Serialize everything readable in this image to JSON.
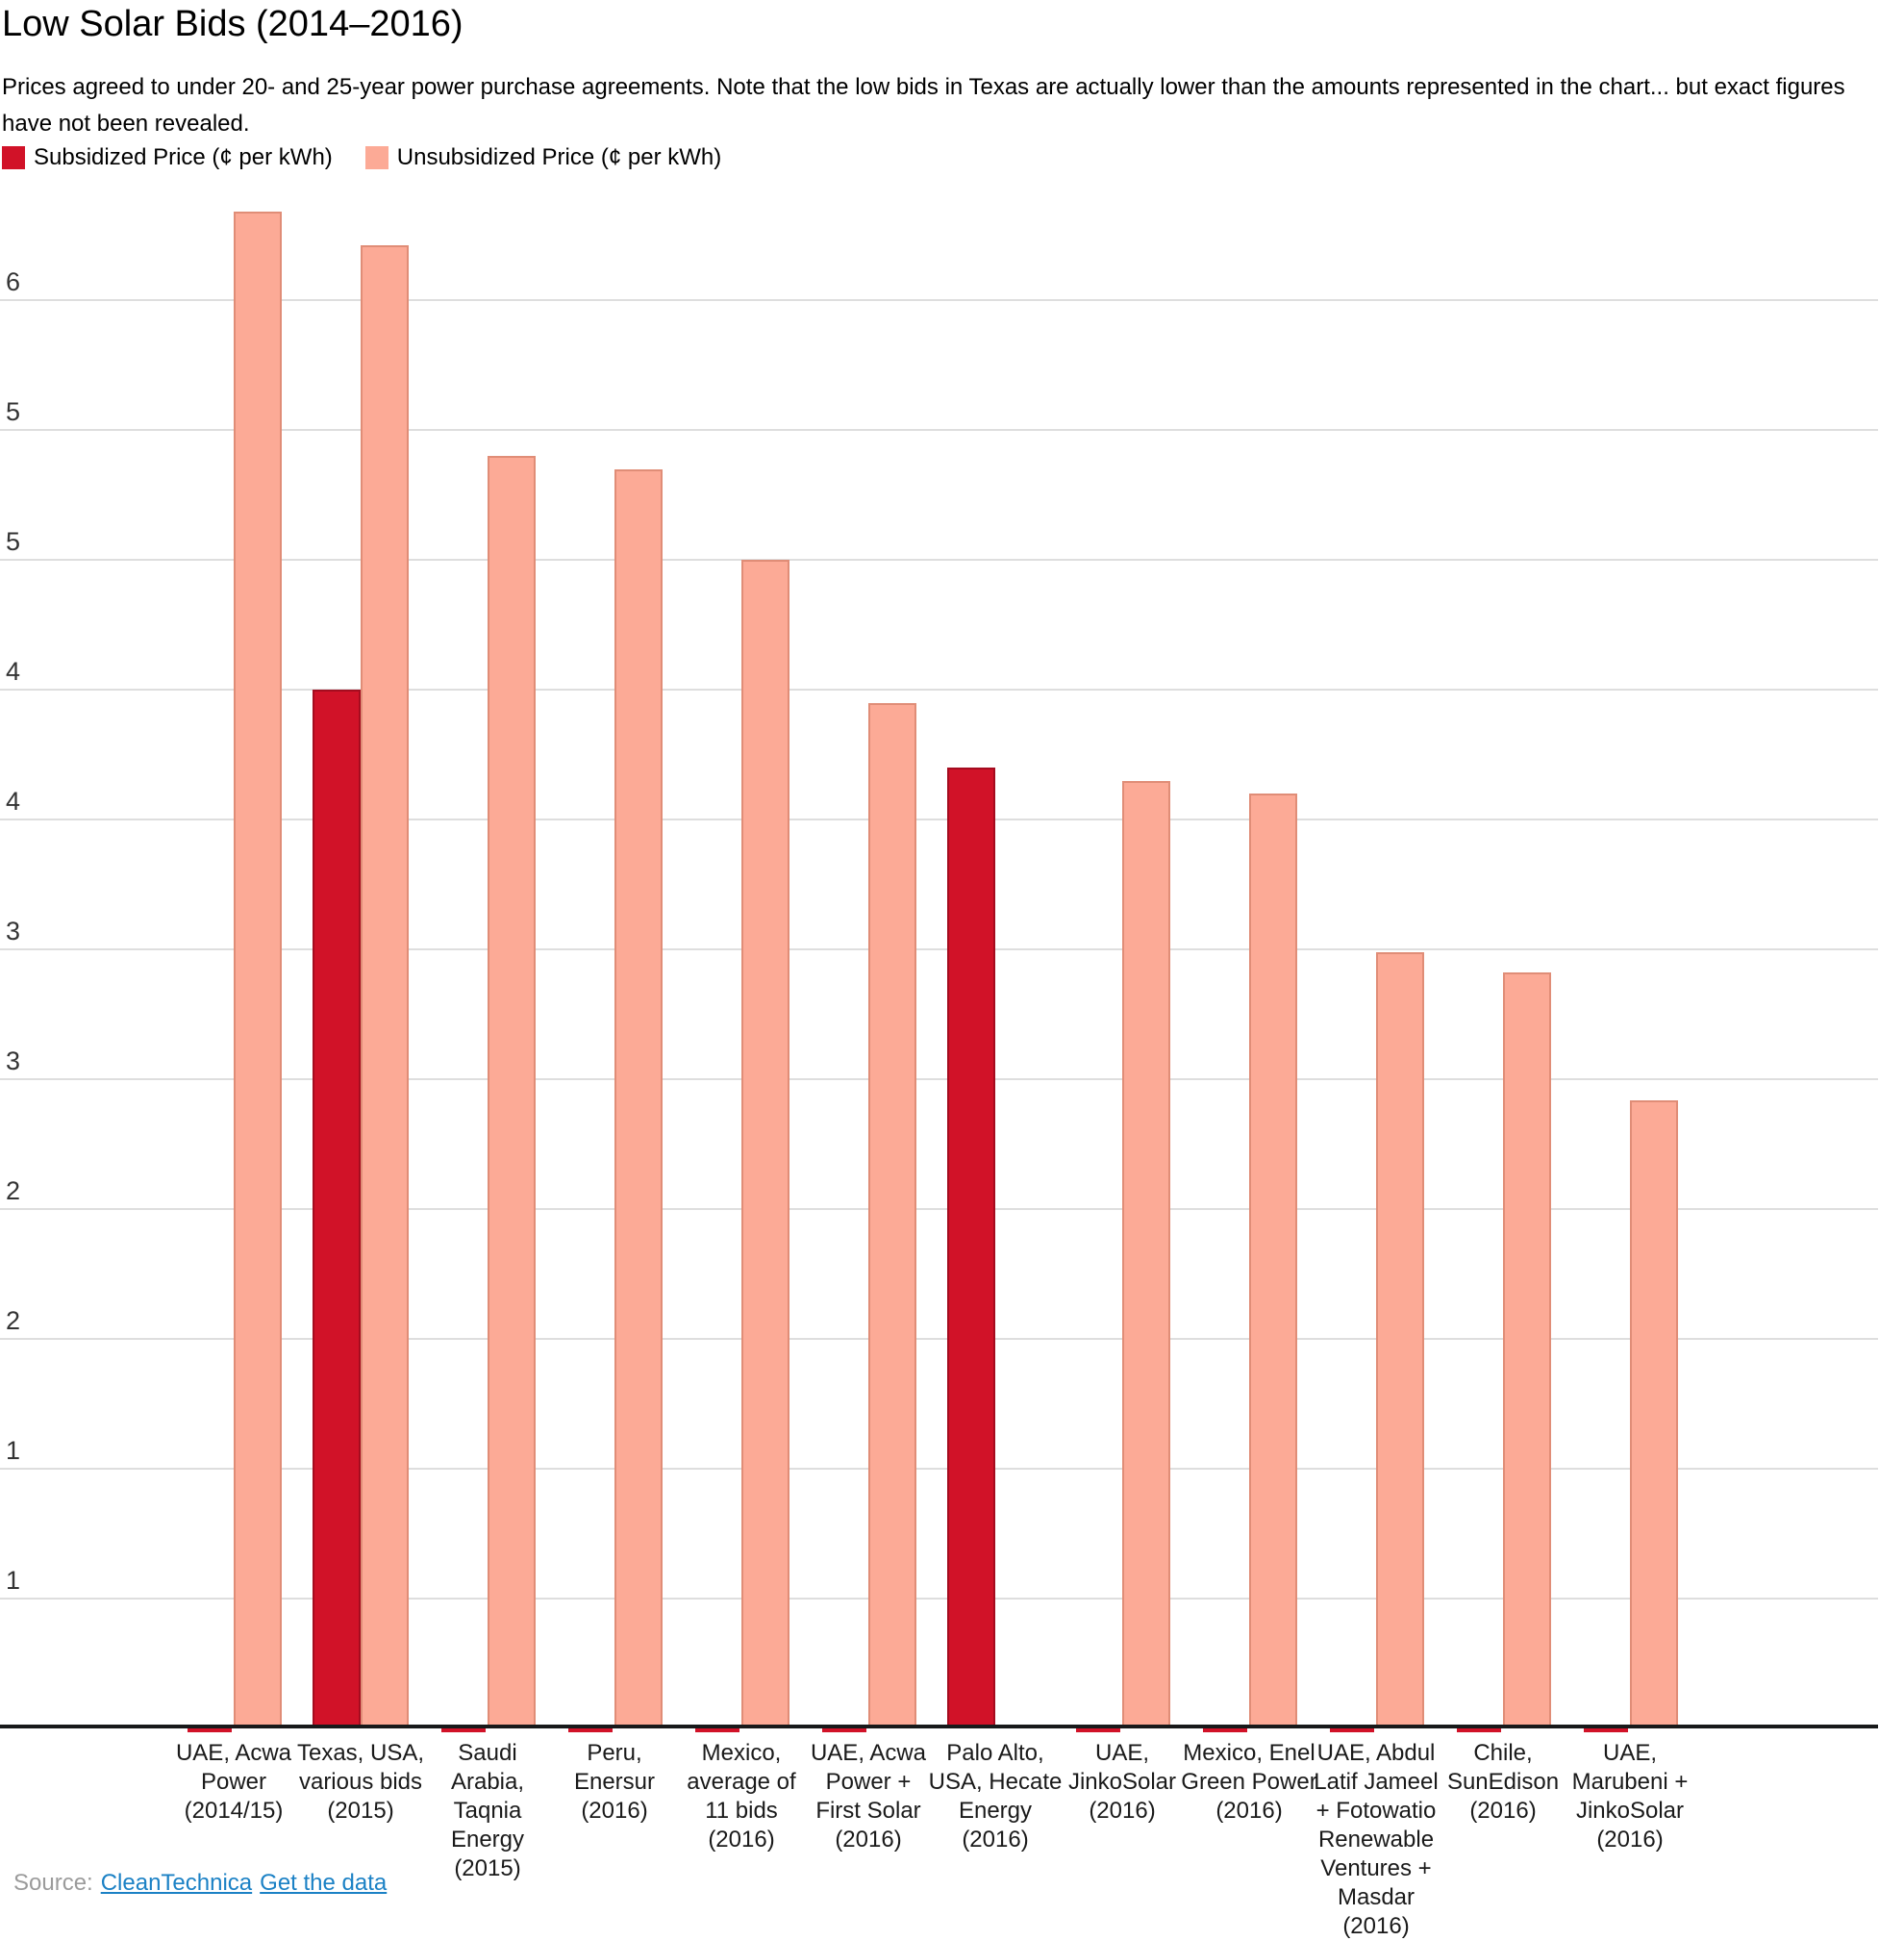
{
  "header": {
    "title": "Low Solar Bids (2014–2016)",
    "subtitle": "Prices agreed to under 20- and 25-year power purchase agreements. Note that the low bids in Texas are actually lower than the amounts represented in the chart... but exact figures have not been revealed."
  },
  "legend": {
    "items": [
      {
        "label": "Subsidized Price (¢ per kWh)",
        "color": "#d11228"
      },
      {
        "label": "Unsubsidized Price (¢ per kWh)",
        "color": "#fcaa96"
      }
    ]
  },
  "chart_data": {
    "type": "bar",
    "title": "Low Solar Bids (2014–2016)",
    "xlabel": "",
    "ylabel": "¢ per kWh",
    "ylim": [
      0,
      5.9
    ],
    "grid": true,
    "legend_position": "top-left",
    "y_ticks": [
      {
        "value": 5.5,
        "label": "6"
      },
      {
        "value": 5.0,
        "label": "5"
      },
      {
        "value": 4.5,
        "label": "5"
      },
      {
        "value": 4.0,
        "label": "4"
      },
      {
        "value": 3.5,
        "label": "4"
      },
      {
        "value": 3.0,
        "label": "3"
      },
      {
        "value": 2.5,
        "label": "3"
      },
      {
        "value": 2.0,
        "label": "2"
      },
      {
        "value": 1.5,
        "label": "2"
      },
      {
        "value": 1.0,
        "label": "1"
      },
      {
        "value": 0.5,
        "label": "1"
      }
    ],
    "categories": [
      "UAE, Acwa Power (2014/15)",
      "Texas, USA, various bids (2015)",
      "Saudi Arabia, Taqnia Energy (2015)",
      "Peru, Enersur (2016)",
      "Mexico, average of 11 bids (2016)",
      "UAE, Acwa Power + First Solar (2016)",
      "Palo Alto, USA, Hecate Energy (2016)",
      "UAE, JinkoSolar (2016)",
      "Mexico, Enel Green Power (2016)",
      "UAE, Abdul Latif Jameel + Fotowatio Renewable Ventures + Masdar (2016)",
      "Chile, SunEdison (2016)",
      "UAE, Marubeni + JinkoSolar (2016)"
    ],
    "category_label_lines": [
      [
        "UAE, Acwa",
        "Power",
        "(2014/15)"
      ],
      [
        "Texas, USA,",
        "various bids",
        "(2015)"
      ],
      [
        "Saudi",
        "Arabia,",
        "Taqnia",
        "Energy",
        "(2015)"
      ],
      [
        "Peru,",
        "Enersur",
        "(2016)"
      ],
      [
        "Mexico,",
        "average of",
        "11 bids",
        "(2016)"
      ],
      [
        "UAE, Acwa",
        "Power +",
        "First Solar",
        "(2016)"
      ],
      [
        "Palo Alto,",
        "USA, Hecate",
        "Energy",
        "(2016)"
      ],
      [
        "UAE,",
        "JinkoSolar",
        "(2016)"
      ],
      [
        "Mexico, Enel",
        "Green Power",
        "(2016)"
      ],
      [
        "UAE, Abdul",
        "Latif Jameel",
        "+ Fotowatio",
        "Renewable",
        "Ventures +",
        "Masdar",
        "(2016)"
      ],
      [
        "Chile,",
        "SunEdison",
        "(2016)"
      ],
      [
        "UAE,",
        "Marubeni +",
        "JinkoSolar",
        "(2016)"
      ]
    ],
    "series": [
      {
        "name": "Subsidized Price (¢ per kWh)",
        "color": "#d11228",
        "border_color": "#a50c1f",
        "values": [
          null,
          4.0,
          null,
          null,
          null,
          null,
          3.7,
          null,
          null,
          null,
          null,
          null
        ]
      },
      {
        "name": "Unsubsidized Price (¢ per kWh)",
        "color": "#fcaa96",
        "border_color": "#e08d77",
        "values": [
          5.84,
          5.71,
          4.9,
          4.85,
          4.5,
          3.95,
          null,
          3.65,
          3.6,
          2.99,
          2.91,
          2.42
        ]
      }
    ]
  },
  "footer": {
    "source_prefix": "Source:",
    "source_link": "CleanTechnica",
    "data_link": "Get the data"
  }
}
